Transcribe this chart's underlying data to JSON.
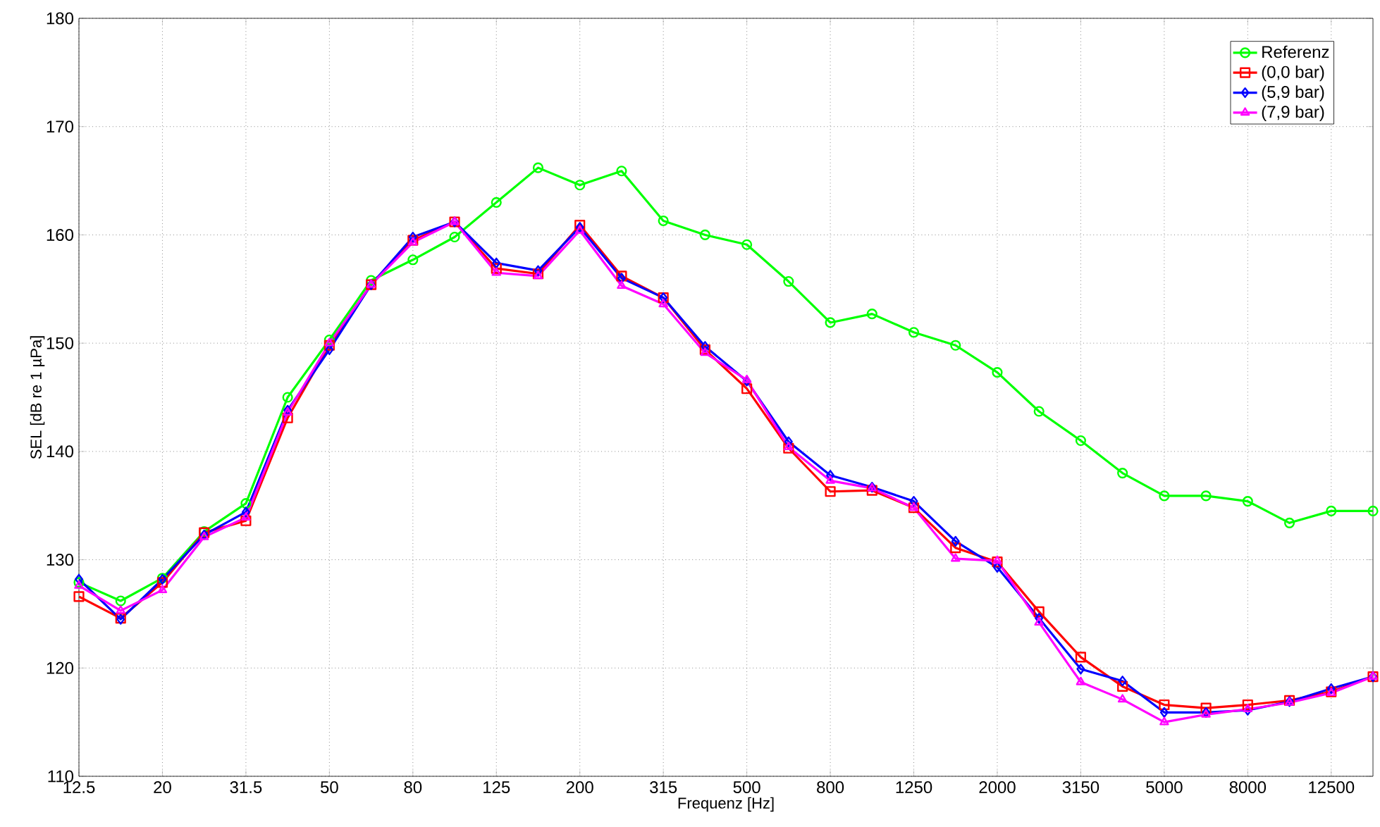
{
  "chart_data": {
    "type": "line",
    "xlabel": "Frequenz [Hz]",
    "ylabel": "SEL [dB re 1 µPa]",
    "categories": [
      "12.5",
      null,
      "20",
      null,
      "31.5",
      null,
      "50",
      null,
      "80",
      null,
      "125",
      null,
      "200",
      null,
      "315",
      null,
      "500",
      null,
      "800",
      null,
      "1250",
      null,
      "2000",
      null,
      "3150",
      null,
      "5000",
      null,
      "8000",
      null,
      "12500",
      null
    ],
    "series": [
      {
        "name": "Referenz",
        "color": "#00ff00",
        "marker": "circle",
        "values": [
          127.9,
          126.2,
          128.3,
          132.6,
          135.2,
          145.0,
          150.3,
          155.8,
          157.7,
          159.8,
          163.0,
          166.2,
          164.6,
          165.9,
          161.3,
          160.0,
          159.1,
          155.7,
          151.9,
          152.7,
          151.0,
          149.8,
          147.3,
          143.7,
          141.0,
          138.0,
          135.9,
          135.9,
          135.4,
          133.4,
          134.5,
          134.5
        ]
      },
      {
        "name": "(0,0 bar)",
        "color": "#ff0000",
        "marker": "square",
        "values": [
          126.6,
          124.6,
          127.9,
          132.5,
          133.6,
          143.1,
          149.8,
          155.4,
          159.5,
          161.2,
          156.9,
          156.4,
          160.9,
          156.2,
          154.2,
          149.4,
          145.8,
          140.3,
          136.3,
          136.4,
          134.8,
          131.1,
          129.8,
          125.2,
          121.0,
          118.3,
          116.6,
          116.3,
          116.6,
          117.0,
          117.8,
          119.2
        ]
      },
      {
        "name": "(5,9 bar)",
        "color": "#0000ff",
        "marker": "diamond",
        "values": [
          128.2,
          124.5,
          128.2,
          132.3,
          134.4,
          143.8,
          149.4,
          155.4,
          159.8,
          161.2,
          157.4,
          156.7,
          160.7,
          156.0,
          154.2,
          149.7,
          146.5,
          140.9,
          137.8,
          136.7,
          135.4,
          131.7,
          129.3,
          124.6,
          119.9,
          118.8,
          115.9,
          115.9,
          116.1,
          116.9,
          118.1,
          119.2
        ]
      },
      {
        "name": "(7,9 bar)",
        "color": "#ff00ff",
        "marker": "triangle",
        "values": [
          127.6,
          125.3,
          127.2,
          132.1,
          133.9,
          143.6,
          150.0,
          155.4,
          159.3,
          161.2,
          156.5,
          156.2,
          160.4,
          155.3,
          153.6,
          149.1,
          146.6,
          140.4,
          137.3,
          136.6,
          134.8,
          130.1,
          129.9,
          124.2,
          118.7,
          117.1,
          115.0,
          115.7,
          116.2,
          116.8,
          117.7,
          119.2
        ]
      }
    ],
    "ylim": [
      110,
      180
    ],
    "yticks": [
      110,
      120,
      130,
      140,
      150,
      160,
      170,
      180
    ],
    "grid": true,
    "legend": "top right",
    "line_style": "solid"
  }
}
